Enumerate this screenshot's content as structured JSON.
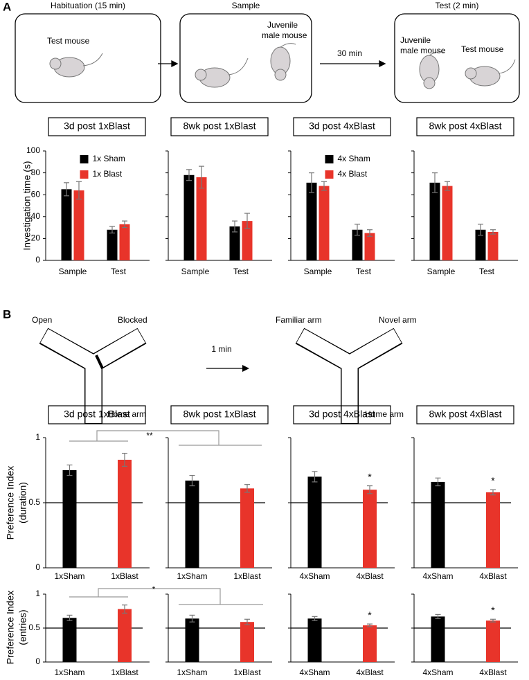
{
  "panels": {
    "a": "A",
    "b": "B"
  },
  "diagram_a": {
    "habituation": "Habituation (15 min)",
    "sample": "Sample",
    "test": "Test (2 min)",
    "test_mouse_1": "Test mouse",
    "juvenile_1_line1": "Juvenile",
    "juvenile_1_line2": "male mouse",
    "interval": "30 min",
    "juvenile_2_line1": "Juvenile",
    "juvenile_2_line2": "male mouse",
    "test_mouse_2": "Test mouse"
  },
  "diagram_b": {
    "open": "Open",
    "blocked": "Blocked",
    "home_arm_1": "Home arm",
    "interval": "1 min",
    "familiar": "Familiar arm",
    "novel": "Novel arm",
    "home_arm_2": "Home arm"
  },
  "comparisons": [
    {
      "text": "**"
    },
    {
      "text": "*"
    }
  ],
  "chart_data": [
    {
      "type": "bar",
      "title": "3d post 1xBlast",
      "ylabel": [
        "Investigation time (s)"
      ],
      "categories": [
        "Sample",
        "Test"
      ],
      "series": [
        {
          "name": "1x Sham",
          "color": "#000000",
          "values": [
            65,
            28
          ],
          "errors": [
            6,
            3
          ]
        },
        {
          "name": "1x Blast",
          "color": "#e8342a",
          "values": [
            64,
            33
          ],
          "errors": [
            8,
            3
          ]
        }
      ],
      "ylim": [
        0,
        100
      ],
      "yticks": [
        0,
        20,
        40,
        60,
        80,
        100
      ],
      "show_ytick_labels": true,
      "legend": "upper right"
    },
    {
      "type": "bar",
      "title": "8wk post 1xBlast",
      "categories": [
        "Sample",
        "Test"
      ],
      "series": [
        {
          "name": null,
          "color": "#000000",
          "values": [
            78,
            31
          ],
          "errors": [
            5,
            5
          ]
        },
        {
          "name": null,
          "color": "#e8342a",
          "values": [
            76,
            36
          ],
          "errors": [
            10,
            7
          ]
        }
      ],
      "ylim": [
        0,
        100
      ],
      "yticks": [
        0,
        20,
        40,
        60,
        80,
        100
      ],
      "show_ytick_labels": false
    },
    {
      "type": "bar",
      "title": "3d post 4xBlast",
      "categories": [
        "Sample",
        "Test"
      ],
      "series": [
        {
          "name": "4x Sham",
          "color": "#000000",
          "values": [
            71,
            28
          ],
          "errors": [
            9,
            5
          ]
        },
        {
          "name": "4x Blast",
          "color": "#e8342a",
          "values": [
            68,
            25
          ],
          "errors": [
            4,
            3
          ]
        }
      ],
      "ylim": [
        0,
        100
      ],
      "yticks": [
        0,
        20,
        40,
        60,
        80,
        100
      ],
      "show_ytick_labels": false,
      "legend": "upper right"
    },
    {
      "type": "bar",
      "title": "8wk post 4xBlast",
      "categories": [
        "Sample",
        "Test"
      ],
      "series": [
        {
          "name": null,
          "color": "#000000",
          "values": [
            71,
            28
          ],
          "errors": [
            9,
            5
          ]
        },
        {
          "name": null,
          "color": "#e8342a",
          "values": [
            68,
            26
          ],
          "errors": [
            4,
            2
          ]
        }
      ],
      "ylim": [
        0,
        100
      ],
      "yticks": [
        0,
        20,
        40,
        60,
        80,
        100
      ],
      "show_ytick_labels": false
    },
    {
      "type": "bar",
      "title": "3d post 1xBlast",
      "ylabel": [
        "Preference Index",
        "(duration)"
      ],
      "categories": [
        "1xSham",
        "1xBlast"
      ],
      "values": [
        0.75,
        0.83
      ],
      "errors": [
        0.04,
        0.05
      ],
      "colors": [
        "#000000",
        "#e8342a"
      ],
      "significance": [
        null,
        null
      ],
      "hline": 0.5,
      "ylim": [
        0,
        1
      ],
      "yticks": [
        0,
        0.5,
        1
      ],
      "show_ytick_labels": true
    },
    {
      "type": "bar",
      "title": "8wk post 1xBlast",
      "categories": [
        "1xSham",
        "1xBlast"
      ],
      "values": [
        0.67,
        0.61
      ],
      "errors": [
        0.04,
        0.03
      ],
      "colors": [
        "#000000",
        "#e8342a"
      ],
      "significance": [
        null,
        null
      ],
      "hline": 0.5,
      "ylim": [
        0,
        1
      ],
      "yticks": [
        0,
        0.5,
        1
      ],
      "show_ytick_labels": false
    },
    {
      "type": "bar",
      "title": "3d post 4xBlast",
      "categories": [
        "4xSham",
        "4xBlast"
      ],
      "values": [
        0.7,
        0.6
      ],
      "errors": [
        0.04,
        0.03
      ],
      "colors": [
        "#000000",
        "#e8342a"
      ],
      "significance": [
        null,
        "*"
      ],
      "hline": 0.5,
      "ylim": [
        0,
        1
      ],
      "yticks": [
        0,
        0.5,
        1
      ],
      "show_ytick_labels": false
    },
    {
      "type": "bar",
      "title": "8wk post 4xBlast",
      "categories": [
        "4xSham",
        "4xBlast"
      ],
      "values": [
        0.66,
        0.58
      ],
      "errors": [
        0.03,
        0.02
      ],
      "colors": [
        "#000000",
        "#e8342a"
      ],
      "significance": [
        null,
        "*"
      ],
      "hline": 0.5,
      "ylim": [
        0,
        1
      ],
      "yticks": [
        0,
        0.5,
        1
      ],
      "show_ytick_labels": false
    },
    {
      "type": "bar",
      "ylabel": [
        "Preference Index",
        "(entries)"
      ],
      "categories": [
        "1xSham",
        "1xBlast"
      ],
      "values": [
        0.65,
        0.78
      ],
      "errors": [
        0.04,
        0.06
      ],
      "colors": [
        "#000000",
        "#e8342a"
      ],
      "significance": [
        null,
        null
      ],
      "hline": 0.5,
      "ylim": [
        0,
        1
      ],
      "yticks": [
        0,
        0.5,
        1
      ],
      "show_ytick_labels": true
    },
    {
      "type": "bar",
      "categories": [
        "1xSham",
        "1xBlast"
      ],
      "values": [
        0.64,
        0.59
      ],
      "errors": [
        0.05,
        0.04
      ],
      "colors": [
        "#000000",
        "#e8342a"
      ],
      "significance": [
        null,
        null
      ],
      "hline": 0.5,
      "ylim": [
        0,
        1
      ],
      "yticks": [
        0,
        0.5,
        1
      ],
      "show_ytick_labels": false
    },
    {
      "type": "bar",
      "categories": [
        "4xSham",
        "4xBlast"
      ],
      "values": [
        0.64,
        0.54
      ],
      "errors": [
        0.03,
        0.02
      ],
      "colors": [
        "#000000",
        "#e8342a"
      ],
      "significance": [
        null,
        "*"
      ],
      "hline": 0.5,
      "ylim": [
        0,
        1
      ],
      "yticks": [
        0,
        0.5,
        1
      ],
      "show_ytick_labels": false
    },
    {
      "type": "bar",
      "categories": [
        "4xSham",
        "4xBlast"
      ],
      "values": [
        0.67,
        0.61
      ],
      "errors": [
        0.03,
        0.02
      ],
      "colors": [
        "#000000",
        "#e8342a"
      ],
      "significance": [
        null,
        "*"
      ],
      "hline": 0.5,
      "ylim": [
        0,
        1
      ],
      "yticks": [
        0,
        0.5,
        1
      ],
      "show_ytick_labels": false
    }
  ]
}
